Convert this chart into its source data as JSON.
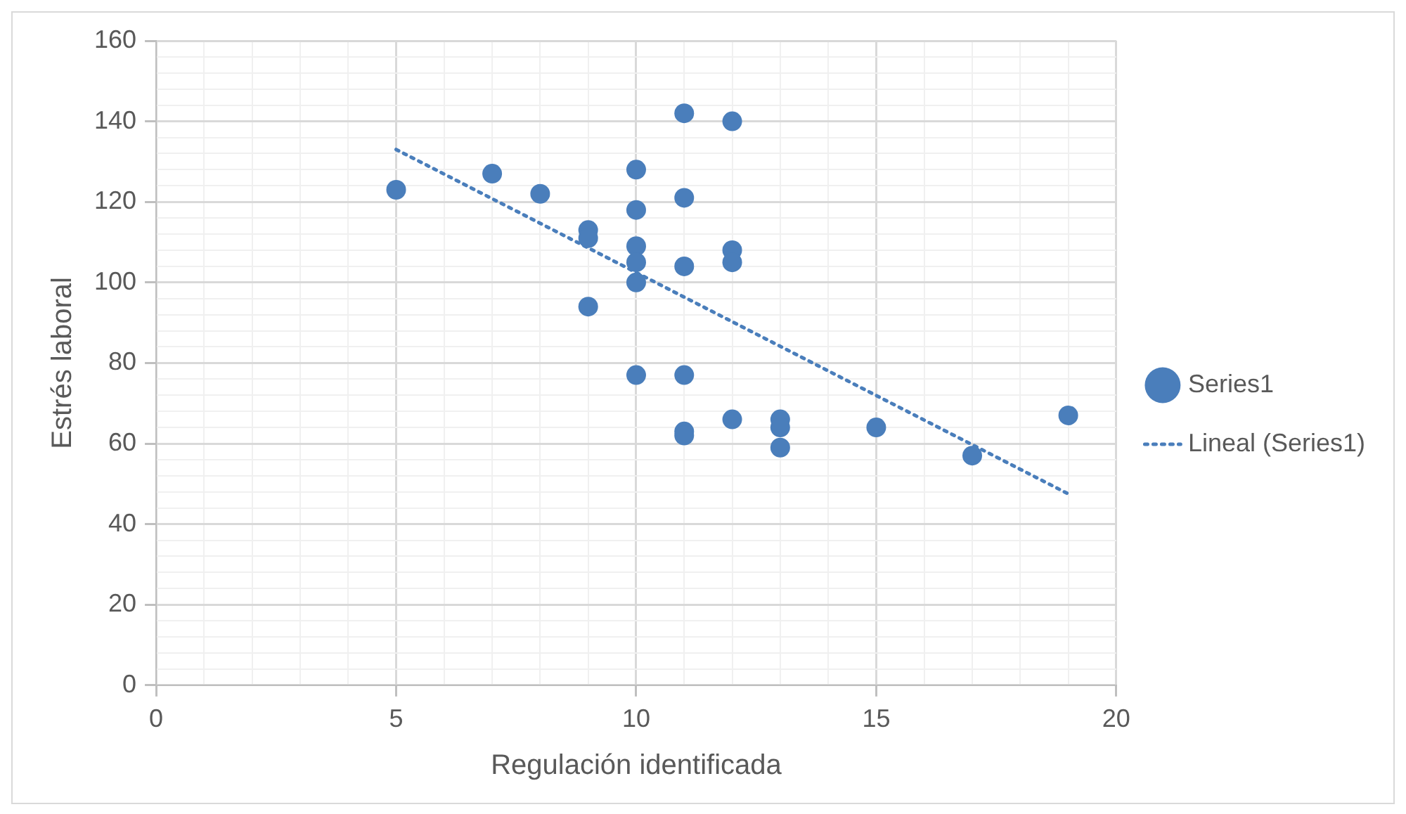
{
  "chart_data": {
    "type": "scatter",
    "xlabel": "Regulación identificada",
    "ylabel": "Estrés laboral",
    "xlim": [
      0,
      20
    ],
    "ylim": [
      0,
      160
    ],
    "xticks": [
      0,
      {
        "value": 1,
        "label": null
      },
      {
        "value": 2,
        "label": null
      },
      {
        "value": 3,
        "label": null
      },
      {
        "value": 4,
        "label": null
      },
      5,
      {
        "value": 6,
        "label": null
      },
      {
        "value": 7,
        "label": null
      },
      {
        "value": 8,
        "label": null
      },
      {
        "value": 9,
        "label": null
      },
      10,
      {
        "value": 11,
        "label": null
      },
      {
        "value": 12,
        "label": null
      },
      {
        "value": 13,
        "label": null
      },
      {
        "value": 14,
        "label": null
      },
      15,
      {
        "value": 16,
        "label": null
      },
      {
        "value": 17,
        "label": null
      },
      {
        "value": 18,
        "label": null
      },
      {
        "value": 19,
        "label": null
      },
      20
    ],
    "yticks": [
      0,
      {
        "value": 4,
        "label": null
      },
      {
        "value": 8,
        "label": null
      },
      {
        "value": 12,
        "label": null
      },
      {
        "value": 16,
        "label": null
      },
      20,
      {
        "value": 24,
        "label": null
      },
      {
        "value": 28,
        "label": null
      },
      {
        "value": 32,
        "label": null
      },
      {
        "value": 36,
        "label": null
      },
      40,
      {
        "value": 44,
        "label": null
      },
      {
        "value": 48,
        "label": null
      },
      {
        "value": 52,
        "label": null
      },
      {
        "value": 56,
        "label": null
      },
      60,
      {
        "value": 64,
        "label": null
      },
      {
        "value": 68,
        "label": null
      },
      {
        "value": 72,
        "label": null
      },
      {
        "value": 76,
        "label": null
      },
      80,
      {
        "value": 84,
        "label": null
      },
      {
        "value": 88,
        "label": null
      },
      {
        "value": 92,
        "label": null
      },
      {
        "value": 96,
        "label": null
      },
      100,
      {
        "value": 104,
        "label": null
      },
      {
        "value": 108,
        "label": null
      },
      {
        "value": 112,
        "label": null
      },
      {
        "value": 116,
        "label": null
      },
      120,
      {
        "value": 124,
        "label": null
      },
      {
        "value": 128,
        "label": null
      },
      {
        "value": 132,
        "label": null
      },
      {
        "value": 136,
        "label": null
      },
      140,
      {
        "value": 144,
        "label": null
      },
      {
        "value": 148,
        "label": null
      },
      {
        "value": 152,
        "label": null
      },
      {
        "value": 156,
        "label": null
      },
      160
    ],
    "grid": true,
    "legend": "right",
    "series": [
      {
        "name": "Series1",
        "type": "scatter",
        "color": "#4a7ebb",
        "marker": "circle",
        "x": [
          5,
          7,
          8,
          9,
          9,
          9,
          10,
          10,
          10,
          10,
          10,
          10,
          11,
          11,
          11,
          11,
          11,
          11,
          12,
          12,
          12,
          12,
          13,
          13,
          13,
          15,
          17,
          19
        ],
        "values": [
          123,
          127,
          122,
          113,
          111,
          94,
          128,
          118,
          109,
          105,
          100,
          77,
          142,
          121,
          104,
          77,
          63,
          62,
          140,
          108,
          105,
          66,
          66,
          64,
          59,
          64,
          57,
          67
        ]
      },
      {
        "name": "Lineal (Series1)",
        "type": "line",
        "color": "#4a7ebb",
        "marker": "none",
        "line_style": "dotted",
        "x": [
          5,
          19
        ],
        "values": [
          133,
          47.5
        ]
      }
    ]
  }
}
